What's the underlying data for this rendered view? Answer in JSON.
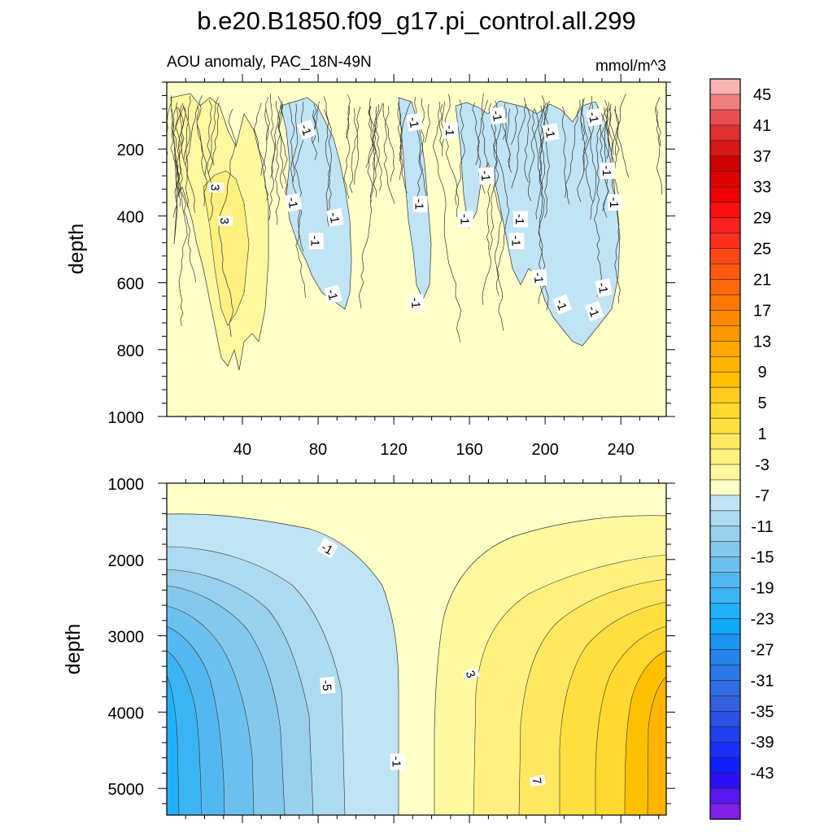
{
  "chart_data": {
    "type": "contour",
    "title": "b.e20.B1850.f09_g17.pi_control.all.299",
    "subtitle_left": "AOU anomaly, PAC_18N-49N",
    "units": "mmol/m^3",
    "panels": [
      {
        "name": "upper",
        "ylabel": "depth",
        "ylim": [
          1000,
          0
        ],
        "y_ticks": [
          200,
          400,
          600,
          800,
          1000
        ],
        "xlim": [
          0,
          264
        ],
        "x_ticks": [
          40,
          80,
          120,
          160,
          200,
          240
        ],
        "contour_labels": [
          {
            "x": 26,
            "y": 315,
            "text": "3",
            "angle": 90
          },
          {
            "x": 31,
            "y": 415,
            "text": "3",
            "angle": 90
          },
          {
            "x": 74,
            "y": 142,
            "text": "-1",
            "angle": 70
          },
          {
            "x": 67,
            "y": 360,
            "text": "-1",
            "angle": 80
          },
          {
            "x": 79,
            "y": 475,
            "text": "-1",
            "angle": 90
          },
          {
            "x": 89,
            "y": 405,
            "text": "-1",
            "angle": 80
          },
          {
            "x": 88,
            "y": 635,
            "text": "-1",
            "angle": 75
          },
          {
            "x": 131,
            "y": 120,
            "text": "-1",
            "angle": 80
          },
          {
            "x": 134,
            "y": 365,
            "text": "-1",
            "angle": 90
          },
          {
            "x": 132,
            "y": 660,
            "text": "-1",
            "angle": 85
          },
          {
            "x": 150,
            "y": 145,
            "text": "-1",
            "angle": 90
          },
          {
            "x": 158,
            "y": 410,
            "text": "-1",
            "angle": 90
          },
          {
            "x": 169,
            "y": 280,
            "text": "-1",
            "angle": 85
          },
          {
            "x": 175,
            "y": 100,
            "text": "-1",
            "angle": 80
          },
          {
            "x": 187,
            "y": 410,
            "text": "-1",
            "angle": 90
          },
          {
            "x": 185,
            "y": 475,
            "text": "-1",
            "angle": 90
          },
          {
            "x": 197,
            "y": 585,
            "text": "-1",
            "angle": 85
          },
          {
            "x": 203,
            "y": 150,
            "text": "-1",
            "angle": 80
          },
          {
            "x": 209,
            "y": 665,
            "text": "-1",
            "angle": 70
          },
          {
            "x": 226,
            "y": 105,
            "text": "-1",
            "angle": 80
          },
          {
            "x": 226,
            "y": 685,
            "text": "-1",
            "angle": 70
          },
          {
            "x": 231,
            "y": 615,
            "text": "-1",
            "angle": 80
          },
          {
            "x": 233,
            "y": 265,
            "text": "-1",
            "angle": 90
          },
          {
            "x": 237,
            "y": 360,
            "text": "-1",
            "angle": 90
          }
        ]
      },
      {
        "name": "lower",
        "ylabel": "depth",
        "ylim": [
          5350,
          1000
        ],
        "y_ticks": [
          1000,
          2000,
          3000,
          4000,
          5000
        ],
        "xlim": [
          0,
          264
        ],
        "x_ticks": [
          40,
          80,
          120,
          160,
          200,
          240
        ],
        "contour_labels": [
          {
            "x": 85,
            "y": 1850,
            "text": "-1",
            "angle": 30
          },
          {
            "x": 85,
            "y": 3650,
            "text": "-5",
            "angle": 85
          },
          {
            "x": 122,
            "y": 4650,
            "text": "-1",
            "angle": 90
          },
          {
            "x": 161,
            "y": 3500,
            "text": "3",
            "angle": 70
          },
          {
            "x": 196,
            "y": 4900,
            "text": "7",
            "angle": 80
          }
        ]
      }
    ],
    "colorbar": {
      "labels": [
        "45",
        "41",
        "37",
        "33",
        "29",
        "25",
        "21",
        "17",
        "13",
        "9",
        "5",
        "1",
        "-3",
        "-7",
        "-11",
        "-15",
        "-19",
        "-23",
        "-27",
        "-31",
        "-35",
        "-39",
        "-43"
      ],
      "colors_top_to_bottom": [
        "#F8B4B4",
        "#F08080",
        "#E85050",
        "#E03030",
        "#D81818",
        "#D00000",
        "#E00000",
        "#F00000",
        "#FF1010",
        "#FF2020",
        "#FF3020",
        "#FF4818",
        "#FF5810",
        "#FF6808",
        "#FF7800",
        "#FF8800",
        "#FF9800",
        "#FFA800",
        "#FFB400",
        "#FFC000",
        "#FFCC20",
        "#FFD830",
        "#FFE040",
        "#FFE860",
        "#FFF080",
        "#FFF8A0",
        "#FFFFC8",
        "#C0E4F4",
        "#ACDAF0",
        "#98D0EE",
        "#84C8EC",
        "#6CC0EE",
        "#54B8F0",
        "#3CB4F4",
        "#20B0F8",
        "#10A8F8",
        "#1C94F0",
        "#2484EC",
        "#2C78E8",
        "#306CE4",
        "#3460E0",
        "#2C50E8",
        "#2040F0",
        "#1830F8",
        "#1020FF",
        "#3010F8",
        "#5818F0",
        "#8020E8"
      ]
    }
  }
}
